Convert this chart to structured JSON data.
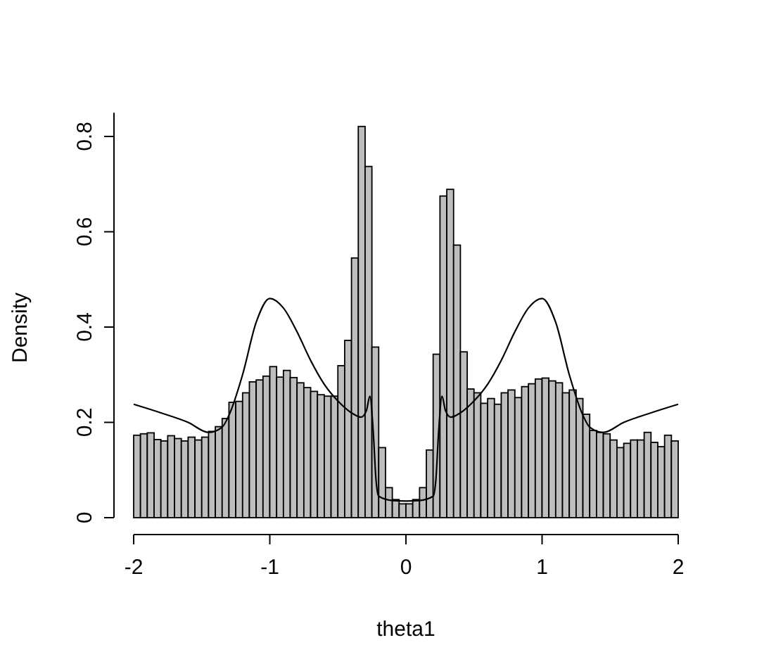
{
  "chart_data": {
    "type": "histogram",
    "xlabel": "theta1",
    "ylabel": "Density",
    "bins": [
      -2,
      -1.95,
      -1.9,
      -1.85,
      -1.8,
      -1.75,
      -1.7,
      -1.65,
      -1.6,
      -1.55,
      -1.5,
      -1.45,
      -1.4,
      -1.35,
      -1.3,
      -1.25,
      -1.2,
      -1.15,
      -1.1,
      -1.05,
      -1,
      -0.95,
      -0.9,
      -0.85,
      -0.8,
      -0.75,
      -0.7,
      -0.65,
      -0.6,
      -0.55,
      -0.5,
      -0.45,
      -0.4,
      -0.35,
      -0.3,
      -0.25,
      -0.2,
      -0.15,
      -0.1,
      -0.05,
      0,
      0.05,
      0.1,
      0.15,
      0.2,
      0.25,
      0.3,
      0.35,
      0.4,
      0.45,
      0.5,
      0.55,
      0.6,
      0.65,
      0.7,
      0.75,
      0.8,
      0.85,
      0.9,
      0.95,
      1,
      1.05,
      1.1,
      1.15,
      1.2,
      1.25,
      1.3,
      1.35,
      1.4,
      1.45,
      1.5,
      1.55,
      1.6,
      1.65,
      1.7,
      1.75,
      1.8,
      1.85,
      1.9,
      1.95,
      2
    ],
    "series": [
      {
        "color": "#bebebe",
        "values": [
          0.173,
          0.176,
          0.178,
          0.164,
          0.161,
          0.172,
          0.166,
          0.161,
          0.169,
          0.163,
          0.169,
          0.181,
          0.191,
          0.208,
          0.242,
          0.244,
          0.262,
          0.285,
          0.289,
          0.297,
          0.317,
          0.295,
          0.309,
          0.294,
          0.283,
          0.273,
          0.265,
          0.258,
          0.255,
          0.255,
          0.319,
          0.372,
          0.545,
          0.821,
          0.737,
          0.358,
          0.147,
          0.063,
          0.038,
          0.029,
          0.029,
          0.038,
          0.063,
          0.142,
          0.343,
          0.675,
          0.689,
          0.572,
          0.348,
          0.27,
          0.262,
          0.24,
          0.25,
          0.238,
          0.262,
          0.268,
          0.252,
          0.275,
          0.281,
          0.291,
          0.293,
          0.287,
          0.283,
          0.262,
          0.268,
          0.25,
          0.217,
          0.183,
          0.179,
          0.176,
          0.163,
          0.147,
          0.156,
          0.163,
          0.163,
          0.179,
          0.158,
          0.149,
          0.173,
          0.161
        ]
      },
      {
        "type": "line",
        "color": "#000000",
        "x": [
          -2,
          -1.8,
          -1.6,
          -1.45,
          -1.35,
          -1.3,
          -1.2,
          -1.1,
          -1,
          -0.9,
          -0.8,
          -0.7,
          -0.6,
          -0.5,
          -0.4,
          -0.33,
          -0.29,
          -0.265,
          -0.24,
          -0.22,
          -0.2,
          -0.1,
          0,
          0.1,
          0.2,
          0.22,
          0.24,
          0.265,
          0.29,
          0.33,
          0.4,
          0.5,
          0.6,
          0.7,
          0.8,
          0.9,
          1,
          1.1,
          1.2,
          1.3,
          1.35,
          1.45,
          1.6,
          1.8,
          2
        ],
        "values": [
          0.238,
          0.22,
          0.2,
          0.179,
          0.19,
          0.215,
          0.3,
          0.41,
          0.46,
          0.44,
          0.39,
          0.33,
          0.28,
          0.245,
          0.22,
          0.211,
          0.225,
          0.255,
          0.18,
          0.08,
          0.045,
          0.036,
          0.035,
          0.036,
          0.045,
          0.08,
          0.18,
          0.255,
          0.225,
          0.211,
          0.22,
          0.245,
          0.28,
          0.33,
          0.39,
          0.44,
          0.46,
          0.41,
          0.3,
          0.215,
          0.19,
          0.179,
          0.2,
          0.22,
          0.238
        ]
      }
    ],
    "xlim": [
      -2,
      2
    ],
    "xticks": [
      -2,
      -1,
      0,
      1,
      2
    ],
    "ylim": [
      0,
      0.85
    ],
    "yticks": [
      0,
      0.2,
      0.4,
      0.6,
      0.8
    ]
  }
}
